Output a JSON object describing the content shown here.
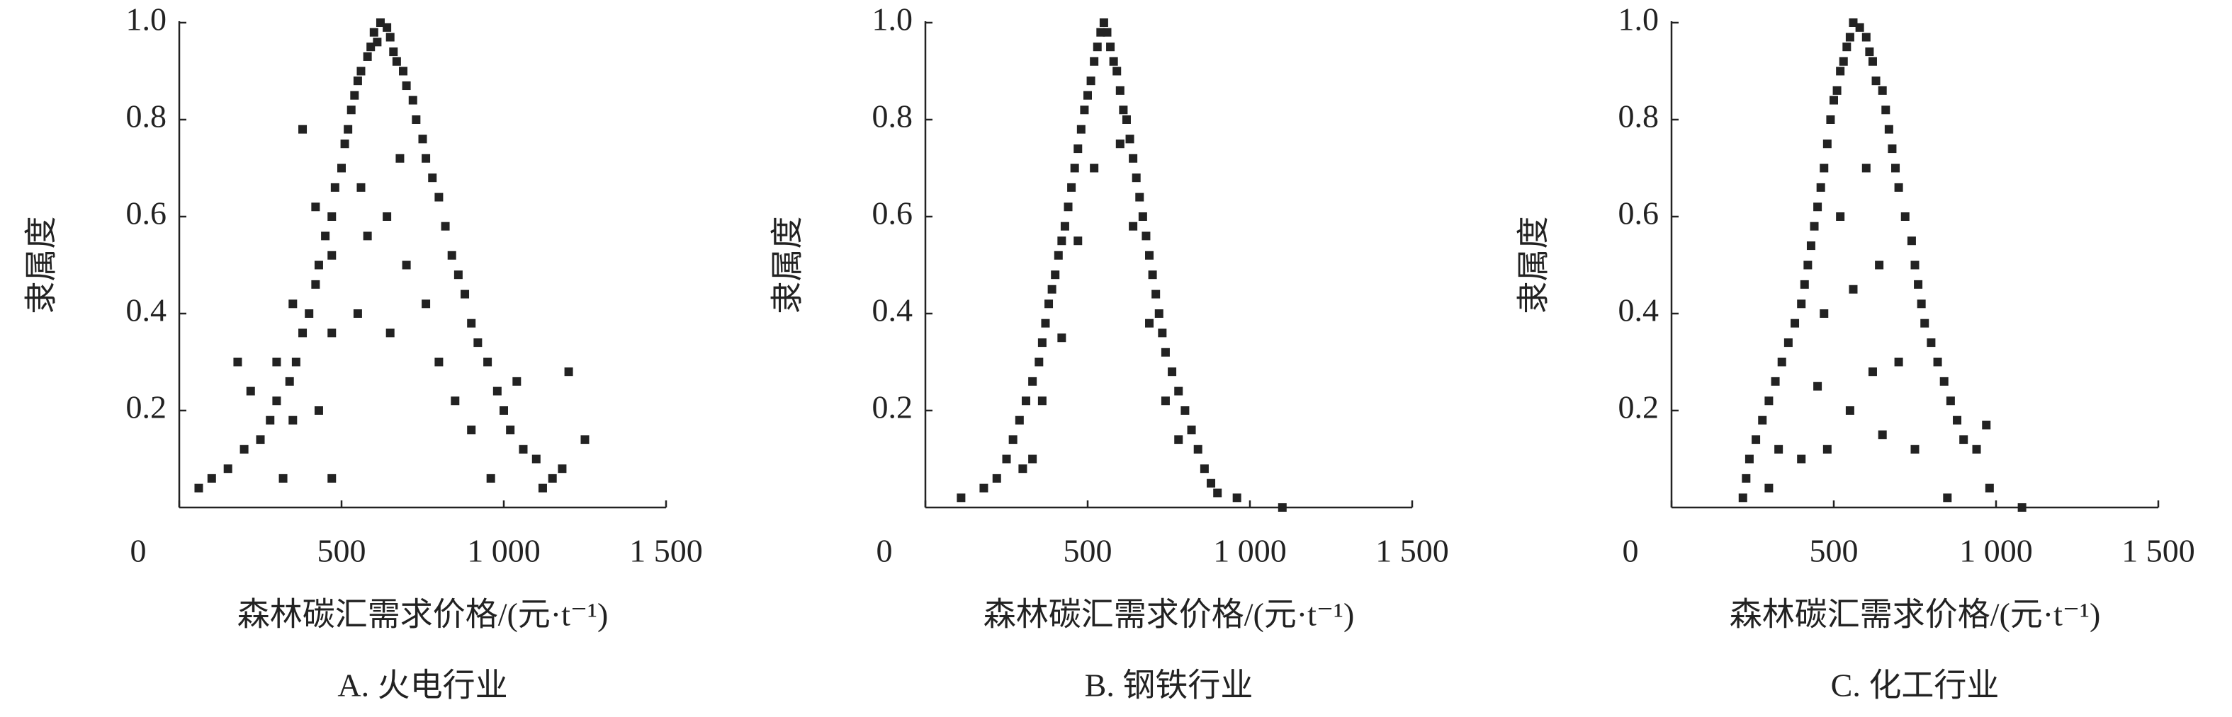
{
  "chart_data": [
    {
      "type": "scatter",
      "title": "A. 火电行业",
      "xlabel": "森林碳汇需求价格/(元·t⁻¹)",
      "ylabel": "隶属度",
      "color": "#222222",
      "xlim": [
        0,
        1500
      ],
      "ylim": [
        0,
        1
      ],
      "xticks": [
        0,
        500,
        {
          "value": 1000,
          "label": "1 000"
        },
        {
          "value": 1500,
          "label": "1 500"
        }
      ],
      "yticks": [
        0.2,
        0.4,
        0.6,
        0.8,
        {
          "value": 1,
          "label": "1.0"
        }
      ],
      "x": [
        600,
        620,
        640,
        610,
        650,
        590,
        660,
        580,
        670,
        560,
        690,
        550,
        700,
        540,
        720,
        530,
        730,
        520,
        750,
        510,
        760,
        500,
        780,
        480,
        800,
        470,
        820,
        450,
        840,
        430,
        860,
        420,
        880,
        400,
        900,
        380,
        920,
        360,
        950,
        340,
        980,
        300,
        1000,
        280,
        1020,
        250,
        1060,
        200,
        1100,
        150,
        1150,
        100,
        60,
        1200,
        1250,
        1180,
        1120,
        380,
        420,
        470,
        350,
        300,
        220,
        180,
        560,
        640,
        700,
        760,
        800,
        850,
        900,
        580,
        680,
        350,
        470,
        650,
        550,
        430,
        470,
        320,
        960,
        1040
      ],
      "values": [
        0.98,
        1.0,
        0.99,
        0.96,
        0.97,
        0.95,
        0.94,
        0.93,
        0.92,
        0.9,
        0.9,
        0.88,
        0.87,
        0.85,
        0.84,
        0.82,
        0.8,
        0.78,
        0.76,
        0.75,
        0.72,
        0.7,
        0.68,
        0.66,
        0.64,
        0.6,
        0.58,
        0.56,
        0.52,
        0.5,
        0.48,
        0.46,
        0.44,
        0.4,
        0.38,
        0.36,
        0.34,
        0.3,
        0.3,
        0.26,
        0.24,
        0.22,
        0.2,
        0.18,
        0.16,
        0.14,
        0.12,
        0.12,
        0.1,
        0.08,
        0.06,
        0.06,
        0.04,
        0.28,
        0.14,
        0.08,
        0.04,
        0.78,
        0.62,
        0.52,
        0.42,
        0.3,
        0.24,
        0.3,
        0.66,
        0.6,
        0.5,
        0.42,
        0.3,
        0.22,
        0.16,
        0.56,
        0.72,
        0.18,
        0.36,
        0.36,
        0.4,
        0.2,
        0.06,
        0.06,
        0.06,
        0.26
      ]
    },
    {
      "type": "scatter",
      "title": "B. 钢铁行业",
      "xlabel": "森林碳汇需求价格/(元·t⁻¹)",
      "ylabel": "隶属度",
      "color": "#222222",
      "xlim": [
        0,
        1500
      ],
      "ylim": [
        0,
        1
      ],
      "xticks": [
        0,
        500,
        {
          "value": 1000,
          "label": "1 000"
        },
        {
          "value": 1500,
          "label": "1 500"
        }
      ],
      "yticks": [
        0.2,
        0.4,
        0.6,
        0.8,
        {
          "value": 1,
          "label": "1.0"
        }
      ],
      "x": [
        550,
        540,
        560,
        530,
        570,
        520,
        580,
        510,
        590,
        500,
        600,
        490,
        610,
        480,
        620,
        470,
        630,
        460,
        640,
        450,
        650,
        440,
        660,
        430,
        670,
        420,
        680,
        410,
        690,
        400,
        700,
        390,
        710,
        380,
        720,
        370,
        730,
        360,
        740,
        350,
        760,
        330,
        780,
        310,
        800,
        290,
        820,
        270,
        840,
        250,
        860,
        220,
        880,
        180,
        900,
        110,
        1100,
        960,
        420,
        470,
        520,
        600,
        640,
        690,
        740,
        360,
        330,
        780,
        300
      ],
      "values": [
        1.0,
        0.98,
        0.98,
        0.95,
        0.95,
        0.92,
        0.92,
        0.88,
        0.9,
        0.85,
        0.86,
        0.82,
        0.82,
        0.78,
        0.8,
        0.74,
        0.76,
        0.7,
        0.72,
        0.66,
        0.68,
        0.62,
        0.64,
        0.58,
        0.6,
        0.55,
        0.56,
        0.52,
        0.52,
        0.48,
        0.48,
        0.45,
        0.44,
        0.42,
        0.4,
        0.38,
        0.36,
        0.34,
        0.32,
        0.3,
        0.28,
        0.26,
        0.24,
        0.22,
        0.2,
        0.18,
        0.16,
        0.14,
        0.12,
        0.1,
        0.08,
        0.06,
        0.05,
        0.04,
        0.03,
        0.02,
        0.0,
        0.02,
        0.35,
        0.55,
        0.7,
        0.75,
        0.58,
        0.38,
        0.22,
        0.22,
        0.1,
        0.14,
        0.08
      ]
    },
    {
      "type": "scatter",
      "title": "C. 化工行业",
      "xlabel": "森林碳汇需求价格/(元·t⁻¹)",
      "ylabel": "隶属度",
      "color": "#222222",
      "xlim": [
        0,
        1500
      ],
      "ylim": [
        0,
        1
      ],
      "xticks": [
        0,
        500,
        {
          "value": 1000,
          "label": "1 000"
        },
        {
          "value": 1500,
          "label": "1 500"
        }
      ],
      "yticks": [
        0.2,
        0.4,
        0.6,
        0.8,
        {
          "value": 1,
          "label": "1.0"
        }
      ],
      "x": [
        560,
        580,
        550,
        600,
        540,
        610,
        530,
        620,
        520,
        630,
        510,
        650,
        500,
        660,
        490,
        670,
        480,
        680,
        470,
        690,
        460,
        700,
        450,
        720,
        440,
        740,
        430,
        750,
        420,
        760,
        410,
        770,
        400,
        780,
        380,
        800,
        360,
        820,
        340,
        840,
        320,
        860,
        300,
        880,
        280,
        900,
        260,
        940,
        240,
        970,
        230,
        980,
        220,
        1080,
        850,
        520,
        600,
        640,
        470,
        560,
        700,
        450,
        550,
        650,
        400,
        750,
        300,
        330,
        480,
        620
      ],
      "values": [
        1.0,
        0.99,
        0.97,
        0.97,
        0.95,
        0.94,
        0.92,
        0.92,
        0.9,
        0.88,
        0.86,
        0.86,
        0.84,
        0.82,
        0.8,
        0.78,
        0.75,
        0.74,
        0.7,
        0.7,
        0.66,
        0.66,
        0.62,
        0.6,
        0.58,
        0.55,
        0.54,
        0.5,
        0.5,
        0.46,
        0.46,
        0.42,
        0.42,
        0.38,
        0.38,
        0.34,
        0.34,
        0.3,
        0.3,
        0.26,
        0.26,
        0.22,
        0.22,
        0.18,
        0.18,
        0.14,
        0.14,
        0.12,
        0.1,
        0.17,
        0.06,
        0.04,
        0.02,
        0.0,
        0.02,
        0.6,
        0.7,
        0.5,
        0.4,
        0.45,
        0.3,
        0.25,
        0.2,
        0.15,
        0.1,
        0.12,
        0.04,
        0.12,
        0.12,
        0.28
      ]
    }
  ]
}
